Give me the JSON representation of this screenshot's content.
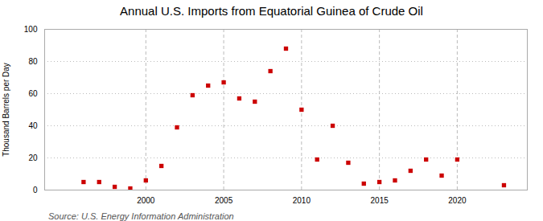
{
  "chart_data": {
    "type": "scatter",
    "title": "Annual U.S. Imports from Equatorial Guinea of Crude Oil",
    "ylabel": "Thousand Barrels per Day",
    "annotation": "Source: U.S. Energy Information Administration",
    "x": [
      1996,
      1997,
      1998,
      1999,
      2000,
      2001,
      2002,
      2003,
      2004,
      2005,
      2006,
      2007,
      2008,
      2009,
      2010,
      2011,
      2012,
      2013,
      2014,
      2015,
      2016,
      2017,
      2018,
      2019,
      2020,
      2023
    ],
    "values": [
      5,
      5,
      2,
      1,
      6,
      15,
      39,
      59,
      65,
      67,
      57,
      55,
      74,
      88,
      50,
      19,
      40,
      17,
      4,
      5,
      6,
      12,
      19,
      9,
      19,
      3
    ],
    "color": "#cc0000",
    "marker": "square",
    "xlim": [
      1993.5,
      2024.5
    ],
    "xticks": [
      2000,
      2005,
      2010,
      2015,
      2020
    ],
    "ylim": [
      0,
      100
    ],
    "yticks": [
      0,
      20,
      40,
      60,
      80,
      100
    ],
    "grid": true
  }
}
